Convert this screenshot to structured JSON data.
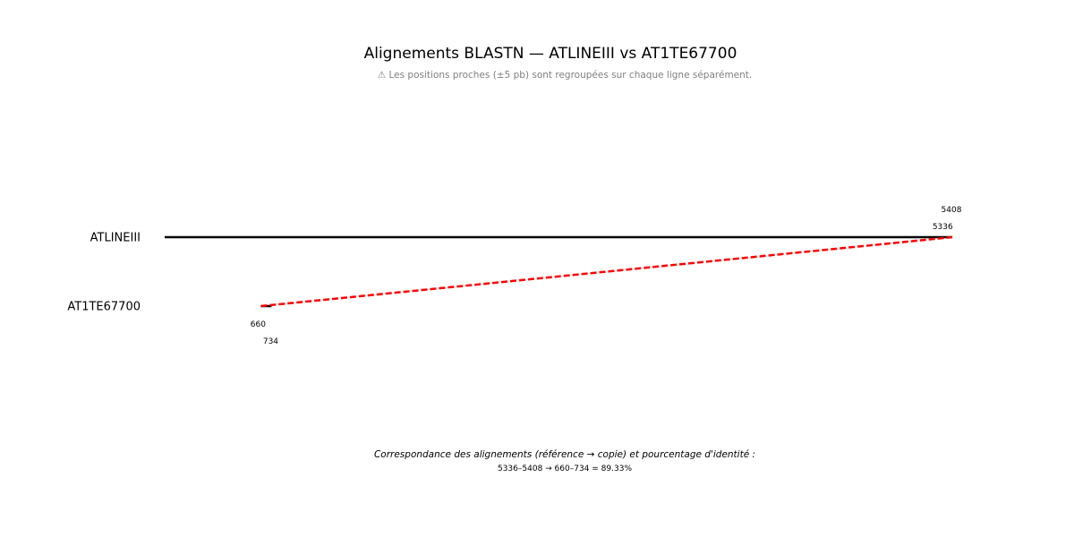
{
  "chart_data": {
    "type": "line",
    "title": "Alignements BLASTN — ATLINEIII vs AT1TE67700",
    "subtitle": "⚠ Les positions proches (±5 pb) sont regroupées sur chaque ligne séparément.",
    "reference": {
      "name": "ATLINEIII",
      "length": 5408
    },
    "copy": {
      "name": "AT1TE67700"
    },
    "alignments": [
      {
        "ref_start": 5336,
        "ref_end": 5408,
        "copy_start": 660,
        "copy_end": 734,
        "identity": 89.33
      }
    ],
    "position_labels": {
      "ref_end": "5408",
      "ref_start": "5336",
      "copy_start": "660",
      "copy_end": "734"
    },
    "connector_color": "#ff0000",
    "line_color": "#000000",
    "caption_title": "Correspondance des alignements (référence → copie) et pourcentage d'identité :",
    "caption_lines": [
      "5336–5408 → 660–734 = 89.33%"
    ]
  }
}
